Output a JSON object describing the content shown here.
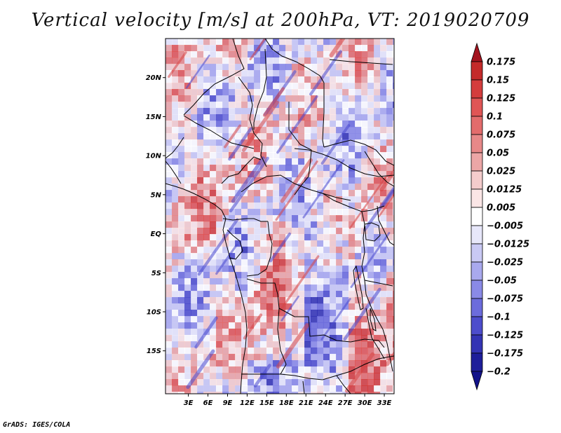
{
  "title": "Vertical velocity [m/s] at 200hPa, VT: 2019020709",
  "credit": "GrADS: IGES/COLA",
  "map": {
    "lon_range": [
      -0.5,
      34.5
    ],
    "lat_range": [
      -20.5,
      25
    ],
    "lat_ticks": [
      {
        "value": 20,
        "label": "20N"
      },
      {
        "value": 15,
        "label": "15N"
      },
      {
        "value": 10,
        "label": "10N"
      },
      {
        "value": 5,
        "label": "5N"
      },
      {
        "value": 0,
        "label": "EQ"
      },
      {
        "value": -5,
        "label": "5S"
      },
      {
        "value": -10,
        "label": "10S"
      },
      {
        "value": -15,
        "label": "15S"
      }
    ],
    "lon_ticks": [
      {
        "value": 3,
        "label": "3E"
      },
      {
        "value": 6,
        "label": "6E"
      },
      {
        "value": 9,
        "label": "9E"
      },
      {
        "value": 12,
        "label": "12E"
      },
      {
        "value": 15,
        "label": "15E"
      },
      {
        "value": 18,
        "label": "18E"
      },
      {
        "value": 21,
        "label": "21E"
      },
      {
        "value": 24,
        "label": "24E"
      },
      {
        "value": 27,
        "label": "27E"
      },
      {
        "value": 30,
        "label": "30E"
      },
      {
        "value": 33,
        "label": "33E"
      }
    ]
  },
  "colorbar": {
    "levels": [
      "0.175",
      "0.15",
      "0.125",
      "0.1",
      "0.075",
      "0.05",
      "0.025",
      "0.0125",
      "0.005",
      "−0.005",
      "−0.0125",
      "−0.025",
      "−0.05",
      "−0.075",
      "−0.1",
      "−0.125",
      "−0.175",
      "−0.2"
    ],
    "colors": [
      "#a3131e",
      "#c42a2a",
      "#d43d3d",
      "#e05555",
      "#e36c6c",
      "#e78888",
      "#eca6a6",
      "#f4cccc",
      "#fbe6e6",
      "#ffffff",
      "#e7e7fa",
      "#c9c9f4",
      "#a9a9ee",
      "#8a8ae6",
      "#6c6cdc",
      "#4d4dcc",
      "#3434b4",
      "#1e1e9a",
      "#12128a"
    ]
  }
}
